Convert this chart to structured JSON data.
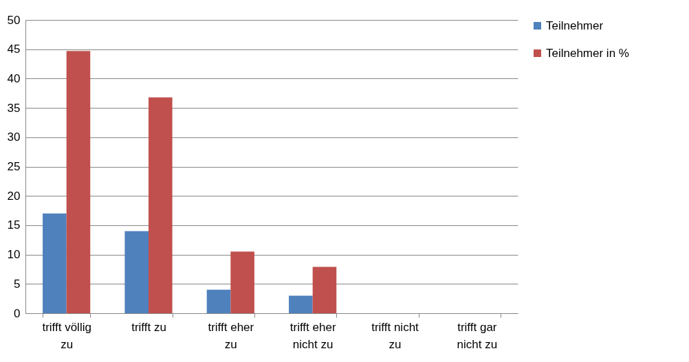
{
  "chart_data": {
    "type": "bar",
    "categories": [
      "trifft völlig zu",
      "trifft zu",
      "trifft eher zu",
      "trifft eher nicht zu",
      "trifft nicht zu",
      "trifft gar nicht zu"
    ],
    "series": [
      {
        "name": "Teilnehmer",
        "color": "#4f81bd",
        "values": [
          17,
          14,
          4,
          3,
          0,
          0
        ]
      },
      {
        "name": "Teilnehmer in %",
        "color": "#c0504d",
        "values": [
          44.7,
          36.8,
          10.5,
          7.9,
          0,
          0
        ]
      }
    ],
    "ylim": [
      0,
      50
    ],
    "yticks": [
      0,
      5,
      10,
      15,
      20,
      25,
      30,
      35,
      40,
      45,
      50
    ],
    "grid": "y",
    "legend": "right"
  }
}
